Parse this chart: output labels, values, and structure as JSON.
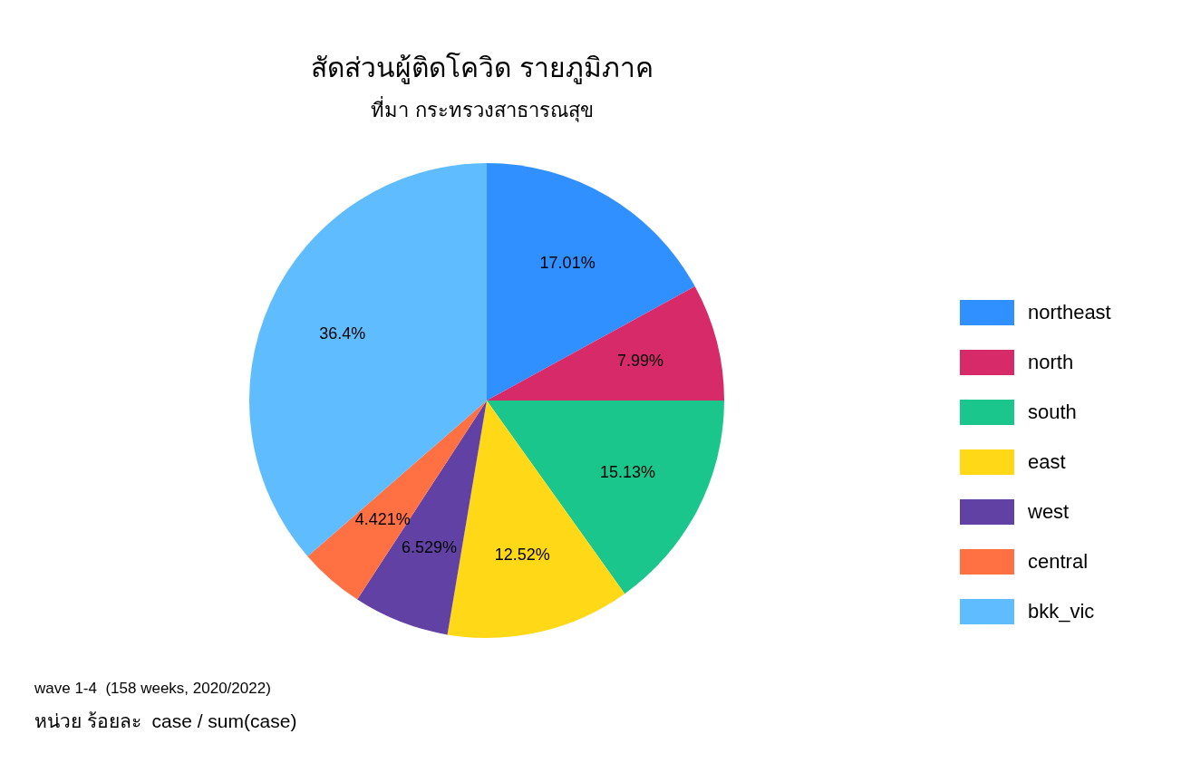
{
  "chart_data": {
    "type": "pie",
    "title": "สัดส่วนผู้ติดโควิด รายภูมิภาค",
    "subtitle": "ที่มา กระทรวงสาธารณสุข",
    "categories": [
      "northeast",
      "north",
      "south",
      "east",
      "west",
      "central",
      "bkk_vic"
    ],
    "values": [
      17.01,
      7.99,
      15.13,
      12.52,
      6.529,
      4.421,
      36.4
    ],
    "value_labels": [
      "17.01%",
      "7.99%",
      "15.13%",
      "12.52%",
      "6.529%",
      "4.421%",
      "36.4%"
    ],
    "colors": [
      "#3190ff",
      "#d62a69",
      "#1ac68b",
      "#ffd817",
      "#6241a4",
      "#ff7043",
      "#5ebcff"
    ],
    "legend": "right",
    "annotations": [
      "wave 1-4  (158 weeks, 2020/2022)",
      "หน่วย ร้อยละ  case / sum(case)"
    ]
  }
}
